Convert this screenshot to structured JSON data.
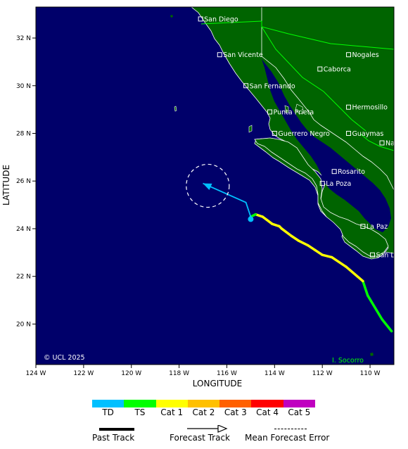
{
  "map": {
    "copyright": "© UCL 2025",
    "island_label": "I. Socorro",
    "xlabel": "LONGITUDE",
    "ylabel": "LATITUDE",
    "colors": {
      "ocean": "#00006a",
      "land": "#006400",
      "border": "#00ff00",
      "forecast_track": "#00c0ff",
      "error_circle": "#ffffff"
    },
    "lon_ticks": [
      "124 W",
      "122 W",
      "120 W",
      "118 W",
      "116 W",
      "114 W",
      "112 W",
      "110 W"
    ],
    "lat_ticks": [
      "32 N",
      "30 N",
      "28 N",
      "26 N",
      "24 N",
      "22 N",
      "20 N"
    ],
    "cities": [
      {
        "name": "San Diego",
        "lon": -117.1,
        "lat": 32.8
      },
      {
        "name": "San Vicente",
        "lon": -116.3,
        "lat": 31.3
      },
      {
        "name": "Nogales",
        "lon": -110.9,
        "lat": 31.3
      },
      {
        "name": "Caborca",
        "lon": -112.1,
        "lat": 30.7
      },
      {
        "name": "San Fernando",
        "lon": -115.2,
        "lat": 30.0
      },
      {
        "name": "Hermosillo",
        "lon": -110.9,
        "lat": 29.1
      },
      {
        "name": "Punta Prieta",
        "lon": -114.2,
        "lat": 28.9
      },
      {
        "name": "Guerrero Negro",
        "lon": -114.0,
        "lat": 28.0
      },
      {
        "name": "Guaymas",
        "lon": -110.9,
        "lat": 28.0
      },
      {
        "name": "Navojoa",
        "lon": -109.5,
        "lat": 27.6
      },
      {
        "name": "Rosarito",
        "lon": -111.5,
        "lat": 26.4
      },
      {
        "name": "La Poza",
        "lon": -112.0,
        "lat": 25.9
      },
      {
        "name": "La Paz",
        "lon": -110.3,
        "lat": 24.1
      },
      {
        "name": "San Lucas",
        "lon": -109.9,
        "lat": 22.9
      }
    ],
    "past_track": [
      {
        "lon": -109.1,
        "lat": 19.7,
        "cat": "TS"
      },
      {
        "lon": -109.5,
        "lat": 20.2,
        "cat": "TS"
      },
      {
        "lon": -110.1,
        "lat": 21.2,
        "cat": "TS"
      },
      {
        "lon": -110.3,
        "lat": 21.8,
        "cat": "Cat 1"
      },
      {
        "lon": -111.0,
        "lat": 22.4,
        "cat": "Cat 1"
      },
      {
        "lon": -111.6,
        "lat": 22.8,
        "cat": "Cat 1"
      },
      {
        "lon": -112.0,
        "lat": 22.9,
        "cat": "Cat 1"
      },
      {
        "lon": -112.3,
        "lat": 23.1,
        "cat": "Cat 1"
      },
      {
        "lon": -112.6,
        "lat": 23.3,
        "cat": "Cat 1"
      },
      {
        "lon": -113.0,
        "lat": 23.5,
        "cat": "Cat 1"
      },
      {
        "lon": -113.3,
        "lat": 23.7,
        "cat": "Cat 1"
      },
      {
        "lon": -113.7,
        "lat": 24.0,
        "cat": "Cat 1"
      },
      {
        "lon": -113.8,
        "lat": 24.1,
        "cat": "Cat 1"
      },
      {
        "lon": -114.1,
        "lat": 24.2,
        "cat": "Cat 1"
      },
      {
        "lon": -114.5,
        "lat": 24.5,
        "cat": "Cat 1"
      },
      {
        "lon": -114.8,
        "lat": 24.6,
        "cat": "TS"
      },
      {
        "lon": -115.0,
        "lat": 24.5,
        "cat": "TS"
      },
      {
        "lon": -115.0,
        "lat": 24.4,
        "cat": "TD"
      }
    ],
    "forecast_track": [
      {
        "lon": -115.0,
        "lat": 24.5
      },
      {
        "lon": -115.2,
        "lat": 25.1
      },
      {
        "lon": -117.0,
        "lat": 25.9
      }
    ],
    "error_circle": {
      "lon": -116.8,
      "lat": 25.8,
      "radius_deg": 0.9
    }
  },
  "legend": {
    "categories": [
      {
        "label": "TD",
        "color": "#00c0ff"
      },
      {
        "label": "TS",
        "color": "#00ff00"
      },
      {
        "label": "Cat 1",
        "color": "#ffff00"
      },
      {
        "label": "Cat 2",
        "color": "#ffc000"
      },
      {
        "label": "Cat 3",
        "color": "#ff6000"
      },
      {
        "label": "Cat 4",
        "color": "#ff0000"
      },
      {
        "label": "Cat 5",
        "color": "#c000c0"
      }
    ],
    "past_track_label": "Past Track",
    "forecast_track_label": "Forecast Track",
    "error_label": "Mean Forecast Error"
  }
}
